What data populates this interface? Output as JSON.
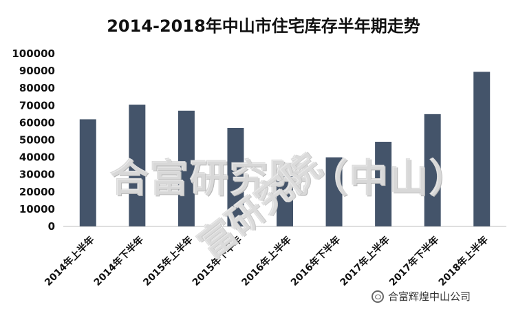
{
  "chart_data": {
    "type": "bar",
    "title": "2014-2018年中山市住宅库存半年期走势",
    "categories": [
      "2014年上半年",
      "2014年下半年",
      "2015年上半年",
      "2015年下半年",
      "2016年上半年",
      "2016年下半年",
      "2017年上半年",
      "2017年下半年",
      "2018年上半年"
    ],
    "values": [
      62000,
      70500,
      67000,
      57000,
      29000,
      40000,
      49000,
      65000,
      89500
    ],
    "ylim": [
      0,
      100000
    ],
    "yticks": [
      "100000",
      "90000",
      "80000",
      "70000",
      "60000",
      "50000",
      "40000",
      "30000",
      "20000",
      "10000",
      "0"
    ],
    "grid": false,
    "bar_color": "#44546a"
  },
  "watermark": {
    "main": "合富研究院（中山）",
    "diagonal": "富研究院"
  },
  "footer": {
    "icon": "wechat-icon",
    "text": "合富辉煌中山公司"
  }
}
